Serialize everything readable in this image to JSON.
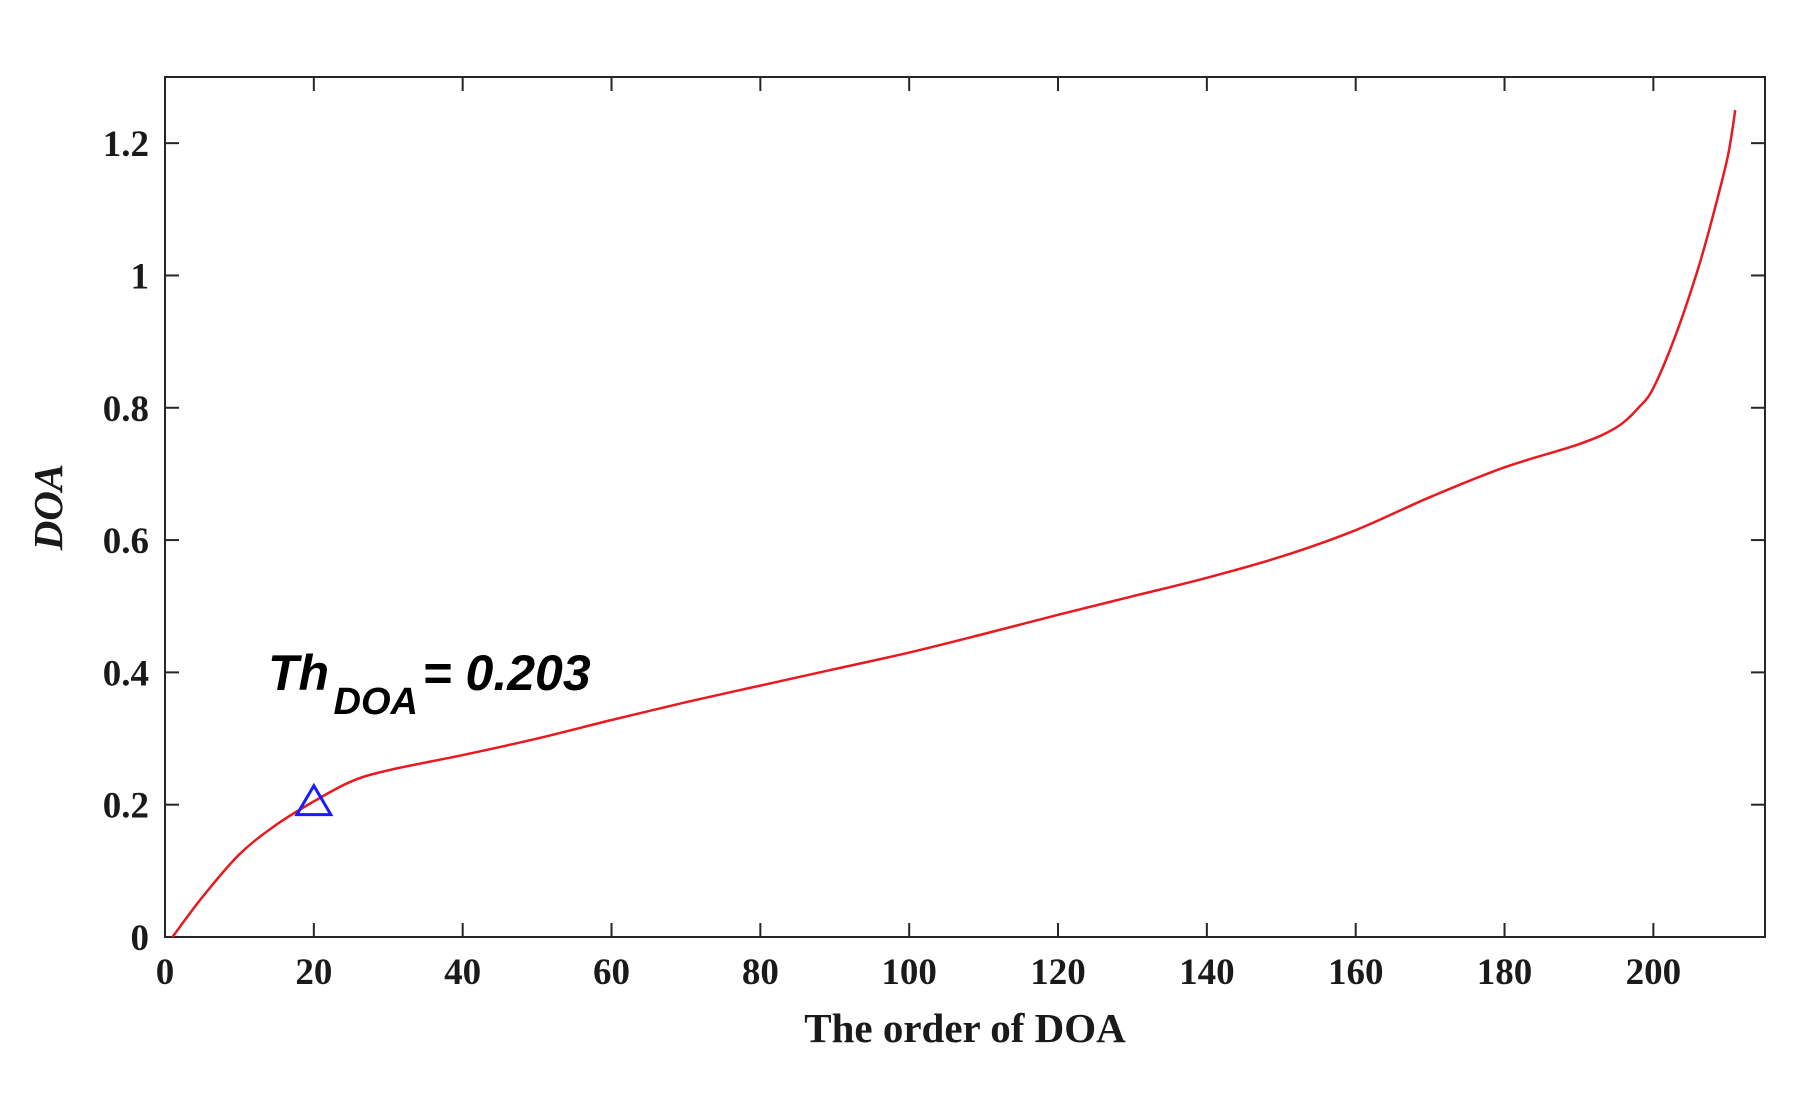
{
  "chart_data": {
    "type": "line",
    "title": "",
    "xlabel": "The order of DOA",
    "ylabel": "DOA",
    "xlim": [
      0,
      215
    ],
    "ylim": [
      0,
      1.3
    ],
    "xticks": [
      0,
      20,
      40,
      60,
      80,
      100,
      120,
      140,
      160,
      180,
      200
    ],
    "yticks": [
      0,
      0.2,
      0.4,
      0.6,
      0.8,
      1,
      1.2
    ],
    "xtick_labels": [
      "0",
      "20",
      "40",
      "60",
      "80",
      "100",
      "120",
      "140",
      "160",
      "180",
      "200"
    ],
    "ytick_labels": [
      "0",
      "0.2",
      "0.4",
      "0.6",
      "0.8",
      "1",
      "1.2"
    ],
    "grid": false,
    "series": [
      {
        "color": "#e8191f",
        "x": [
          1,
          5,
          10,
          15,
          20,
          25,
          30,
          40,
          50,
          60,
          70,
          80,
          90,
          100,
          110,
          120,
          130,
          140,
          150,
          160,
          170,
          180,
          190,
          195,
          198,
          200,
          203,
          206,
          208,
          210,
          211
        ],
        "y": [
          0.0,
          0.06,
          0.125,
          0.17,
          0.205,
          0.235,
          0.252,
          0.275,
          0.3,
          0.328,
          0.355,
          0.38,
          0.405,
          0.43,
          0.458,
          0.487,
          0.515,
          0.543,
          0.575,
          0.615,
          0.665,
          0.71,
          0.745,
          0.77,
          0.8,
          0.83,
          0.91,
          1.01,
          1.09,
          1.18,
          1.25
        ]
      }
    ],
    "marker": {
      "shape": "triangle",
      "color": "#1a1aff",
      "x": 20,
      "y": 0.203
    },
    "annotation": {
      "main": "Th",
      "subscript": "DOA",
      "rest": " = 0.203"
    }
  }
}
